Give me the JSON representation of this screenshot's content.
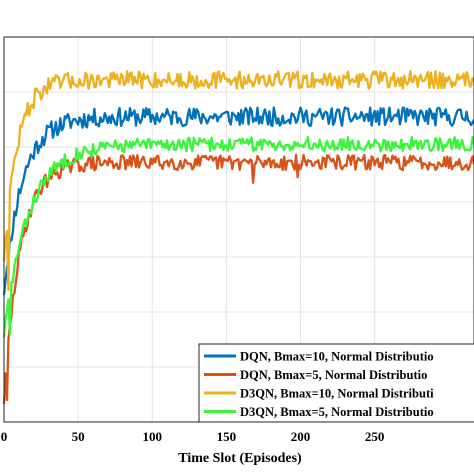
{
  "chart_data": {
    "type": "line",
    "xlabel": "Time Slot (Episodes)",
    "ylabel": "",
    "xlim": [
      0,
      300
    ],
    "ylim": [
      0,
      7
    ],
    "grid": true,
    "legend_placement": "bottom-right",
    "x_ticks": [
      {
        "value": 0,
        "label": "0"
      },
      {
        "value": 50,
        "label": "50"
      },
      {
        "value": 100,
        "label": "100"
      },
      {
        "value": 150,
        "label": "150"
      },
      {
        "value": 200,
        "label": "200"
      },
      {
        "value": 250,
        "label": "250"
      }
    ],
    "y_ticks": [
      1,
      2,
      3,
      4,
      5,
      6
    ],
    "series": [
      {
        "name": "DQN, Bmax=10, Normal Distributio",
        "color": "#0072BD",
        "start": 2.4,
        "plateau": 5.55,
        "rate": 0.08,
        "jitter": 0.17,
        "seed": 11,
        "dips": [
          {
            "x": 5,
            "y": 3.3
          }
        ]
      },
      {
        "name": "DQN, Bmax=5, Normal Distributio",
        "color": "#D95319",
        "start": 0.4,
        "plateau": 4.72,
        "rate": 0.09,
        "jitter": 0.14,
        "seed": 29,
        "dips": [
          {
            "x": 2,
            "y": 0.4
          },
          {
            "x": 168,
            "y": 4.35
          },
          {
            "x": 198,
            "y": 4.45
          }
        ]
      },
      {
        "name": "D3QN, Bmax=10, Normal Distributi",
        "color": "#EDB120",
        "start": 3.0,
        "plateau": 6.22,
        "rate": 0.11,
        "jitter": 0.16,
        "seed": 47,
        "dips": [
          {
            "x": 3,
            "y": 2.4
          }
        ]
      },
      {
        "name": "D3QN, Bmax=5, Normal Distributio",
        "color": "#3BF53B",
        "start": 1.6,
        "plateau": 5.05,
        "rate": 0.06,
        "jitter": 0.13,
        "seed": 83,
        "dips": [
          {
            "x": 4,
            "y": 1.6
          }
        ]
      }
    ]
  }
}
